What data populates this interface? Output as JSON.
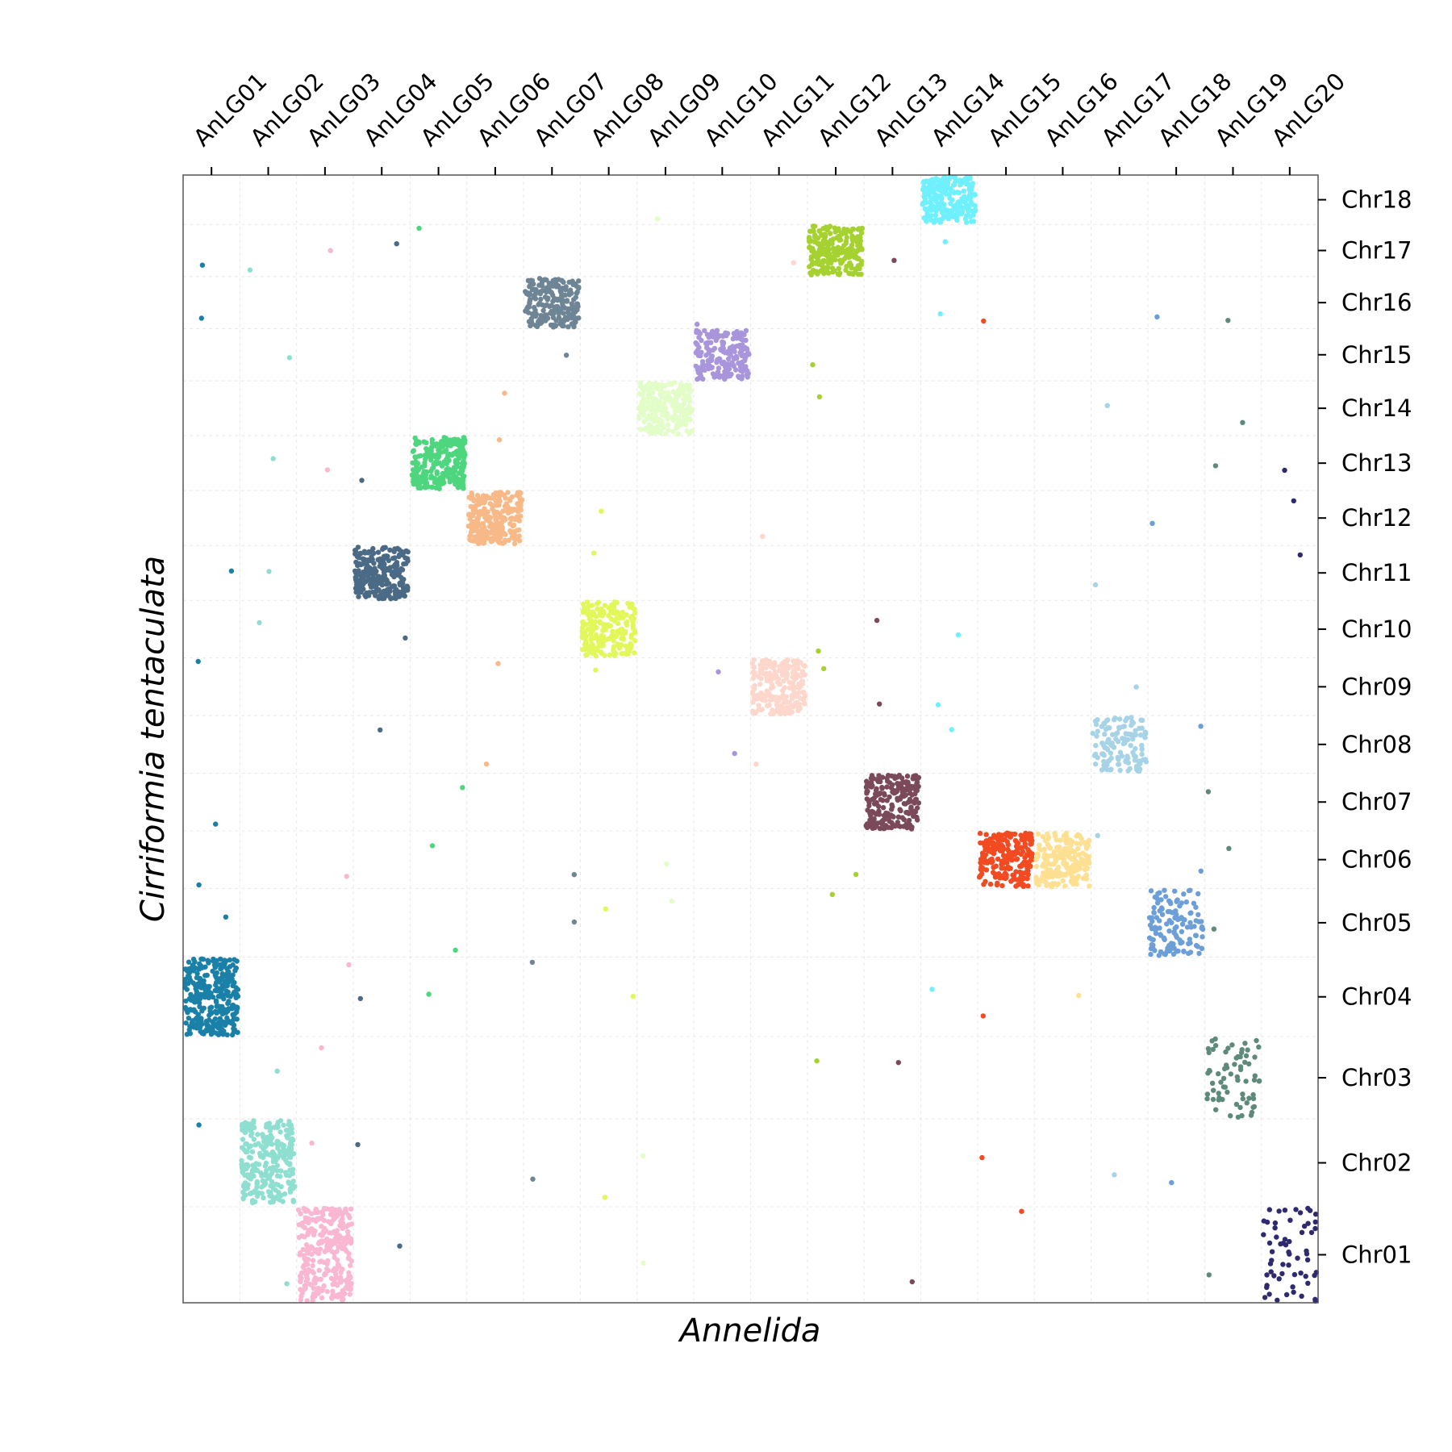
{
  "chart_data": {
    "type": "scatter",
    "xlabel": "Annelida",
    "ylabel": "Cirriformia tentaculata",
    "x_categories": [
      "AnLG01",
      "AnLG02",
      "AnLG03",
      "AnLG04",
      "AnLG05",
      "AnLG06",
      "AnLG07",
      "AnLG08",
      "AnLG09",
      "AnLG10",
      "AnLG11",
      "AnLG12",
      "AnLG13",
      "AnLG14",
      "AnLG15",
      "AnLG16",
      "AnLG17",
      "AnLG18",
      "AnLG19",
      "AnLG20"
    ],
    "y_categories": [
      "Chr01",
      "Chr02",
      "Chr03",
      "Chr04",
      "Chr05",
      "Chr06",
      "Chr07",
      "Chr08",
      "Chr09",
      "Chr10",
      "Chr11",
      "Chr12",
      "Chr13",
      "Chr14",
      "Chr15",
      "Chr16",
      "Chr17",
      "Chr18"
    ],
    "y_relative_sizes": [
      1.75,
      1.6,
      1.5,
      1.45,
      1.25,
      1.05,
      1.05,
      1.05,
      1.05,
      1.05,
      1.0,
      1.0,
      1.0,
      1.0,
      0.95,
      0.95,
      0.95,
      0.9
    ],
    "grid": true,
    "x_tick_position": "top",
    "y_tick_position": "right",
    "blocks": [
      {
        "x": "AnLG01",
        "y": "Chr04",
        "color": "#1a80a8",
        "n": 320
      },
      {
        "x": "AnLG02",
        "y": "Chr02",
        "color": "#8fdfd0",
        "n": 260
      },
      {
        "x": "AnLG03",
        "y": "Chr01",
        "color": "#f9b7d2",
        "n": 300
      },
      {
        "x": "AnLG04",
        "y": "Chr11",
        "color": "#4a6a86",
        "n": 240
      },
      {
        "x": "AnLG05",
        "y": "Chr13",
        "color": "#4ed67e",
        "n": 240
      },
      {
        "x": "AnLG06",
        "y": "Chr12",
        "color": "#f8b988",
        "n": 240
      },
      {
        "x": "AnLG07",
        "y": "Chr16",
        "color": "#6e8596",
        "n": 220
      },
      {
        "x": "AnLG08",
        "y": "Chr10",
        "color": "#e2f85a",
        "n": 220
      },
      {
        "x": "AnLG09",
        "y": "Chr14",
        "color": "#e3fdc9",
        "n": 220
      },
      {
        "x": "AnLG10",
        "y": "Chr15",
        "color": "#a895dc",
        "n": 200
      },
      {
        "x": "AnLG11",
        "y": "Chr09",
        "color": "#fdd7cc",
        "n": 220
      },
      {
        "x": "AnLG12",
        "y": "Chr17",
        "color": "#a5d230",
        "n": 240
      },
      {
        "x": "AnLG13",
        "y": "Chr07",
        "color": "#7a4a5a",
        "n": 220
      },
      {
        "x": "AnLG14",
        "y": "Chr18",
        "color": "#6ef1fd",
        "n": 220
      },
      {
        "x": "AnLG15",
        "y": "Chr06",
        "color": "#f34a22",
        "n": 220
      },
      {
        "x": "AnLG16",
        "y": "Chr06",
        "color": "#fde092",
        "n": 200
      },
      {
        "x": "AnLG17",
        "y": "Chr08",
        "color": "#a6d3e6",
        "n": 130
      },
      {
        "x": "AnLG18",
        "y": "Chr05",
        "color": "#6c9ed8",
        "n": 130
      },
      {
        "x": "AnLG19",
        "y": "Chr03",
        "color": "#5e8a7c",
        "n": 70
      },
      {
        "x": "AnLG20",
        "y": "Chr01",
        "color": "#2e2a6e",
        "n": 60
      }
    ],
    "scattered_points": [
      {
        "x": "AnLG01",
        "y": "Chr17",
        "color": "#1a80a8"
      },
      {
        "x": "AnLG01",
        "y": "Chr16",
        "color": "#1a80a8"
      },
      {
        "x": "AnLG01",
        "y": "Chr11",
        "color": "#1a80a8"
      },
      {
        "x": "AnLG01",
        "y": "Chr09",
        "color": "#1a80a8"
      },
      {
        "x": "AnLG01",
        "y": "Chr07",
        "color": "#1a80a8"
      },
      {
        "x": "AnLG01",
        "y": "Chr06",
        "color": "#1a80a8"
      },
      {
        "x": "AnLG01",
        "y": "Chr05",
        "color": "#1a80a8"
      },
      {
        "x": "AnLG01",
        "y": "Chr02",
        "color": "#1a80a8"
      },
      {
        "x": "AnLG02",
        "y": "Chr17",
        "color": "#8fdfd0"
      },
      {
        "x": "AnLG02",
        "y": "Chr15",
        "color": "#8fdfd0"
      },
      {
        "x": "AnLG02",
        "y": "Chr13",
        "color": "#8fdfd0"
      },
      {
        "x": "AnLG02",
        "y": "Chr11",
        "color": "#8fdfd0"
      },
      {
        "x": "AnLG02",
        "y": "Chr10",
        "color": "#8fdfd0"
      },
      {
        "x": "AnLG02",
        "y": "Chr03",
        "color": "#8fdfd0"
      },
      {
        "x": "AnLG02",
        "y": "Chr01",
        "color": "#8fdfd0"
      },
      {
        "x": "AnLG03",
        "y": "Chr17",
        "color": "#f9b7d2"
      },
      {
        "x": "AnLG03",
        "y": "Chr13",
        "color": "#f9b7d2"
      },
      {
        "x": "AnLG03",
        "y": "Chr06",
        "color": "#f9b7d2"
      },
      {
        "x": "AnLG03",
        "y": "Chr04",
        "color": "#f9b7d2"
      },
      {
        "x": "AnLG03",
        "y": "Chr03",
        "color": "#f9b7d2"
      },
      {
        "x": "AnLG03",
        "y": "Chr02",
        "color": "#f9b7d2"
      },
      {
        "x": "AnLG04",
        "y": "Chr17",
        "color": "#4a6a86"
      },
      {
        "x": "AnLG04",
        "y": "Chr13",
        "color": "#4a6a86"
      },
      {
        "x": "AnLG04",
        "y": "Chr10",
        "color": "#4a6a86"
      },
      {
        "x": "AnLG04",
        "y": "Chr08",
        "color": "#4a6a86"
      },
      {
        "x": "AnLG04",
        "y": "Chr04",
        "color": "#4a6a86"
      },
      {
        "x": "AnLG04",
        "y": "Chr02",
        "color": "#4a6a86"
      },
      {
        "x": "AnLG04",
        "y": "Chr01",
        "color": "#4a6a86"
      },
      {
        "x": "AnLG05",
        "y": "Chr17",
        "color": "#4ed67e"
      },
      {
        "x": "AnLG05",
        "y": "Chr07",
        "color": "#4ed67e"
      },
      {
        "x": "AnLG05",
        "y": "Chr06",
        "color": "#4ed67e"
      },
      {
        "x": "AnLG05",
        "y": "Chr05",
        "color": "#4ed67e"
      },
      {
        "x": "AnLG05",
        "y": "Chr04",
        "color": "#4ed67e"
      },
      {
        "x": "AnLG06",
        "y": "Chr14",
        "color": "#f8b988"
      },
      {
        "x": "AnLG06",
        "y": "Chr13",
        "color": "#f8b988"
      },
      {
        "x": "AnLG06",
        "y": "Chr09",
        "color": "#f8b988"
      },
      {
        "x": "AnLG06",
        "y": "Chr08",
        "color": "#f8b988"
      },
      {
        "x": "AnLG07",
        "y": "Chr15",
        "color": "#6e8596"
      },
      {
        "x": "AnLG07",
        "y": "Chr06",
        "color": "#6e8596"
      },
      {
        "x": "AnLG07",
        "y": "Chr05",
        "color": "#6e8596"
      },
      {
        "x": "AnLG07",
        "y": "Chr04",
        "color": "#6e8596"
      },
      {
        "x": "AnLG07",
        "y": "Chr02",
        "color": "#6e8596"
      },
      {
        "x": "AnLG08",
        "y": "Chr12",
        "color": "#e2f85a"
      },
      {
        "x": "AnLG08",
        "y": "Chr11",
        "color": "#e2f85a"
      },
      {
        "x": "AnLG08",
        "y": "Chr09",
        "color": "#e2f85a"
      },
      {
        "x": "AnLG08",
        "y": "Chr05",
        "color": "#e2f85a"
      },
      {
        "x": "AnLG08",
        "y": "Chr04",
        "color": "#e2f85a"
      },
      {
        "x": "AnLG08",
        "y": "Chr02",
        "color": "#e2f85a"
      },
      {
        "x": "AnLG09",
        "y": "Chr18",
        "color": "#e3fdc9"
      },
      {
        "x": "AnLG09",
        "y": "Chr06",
        "color": "#e3fdc9"
      },
      {
        "x": "AnLG09",
        "y": "Chr05",
        "color": "#e3fdc9"
      },
      {
        "x": "AnLG09",
        "y": "Chr02",
        "color": "#e3fdc9"
      },
      {
        "x": "AnLG09",
        "y": "Chr01",
        "color": "#e3fdc9"
      },
      {
        "x": "AnLG10",
        "y": "Chr16",
        "color": "#a895dc"
      },
      {
        "x": "AnLG10",
        "y": "Chr09",
        "color": "#a895dc"
      },
      {
        "x": "AnLG10",
        "y": "Chr08",
        "color": "#a895dc"
      },
      {
        "x": "AnLG11",
        "y": "Chr17",
        "color": "#fdd7cc"
      },
      {
        "x": "AnLG11",
        "y": "Chr12",
        "color": "#fdd7cc"
      },
      {
        "x": "AnLG11",
        "y": "Chr08",
        "color": "#fdd7cc"
      },
      {
        "x": "AnLG12",
        "y": "Chr15",
        "color": "#a5d230"
      },
      {
        "x": "AnLG12",
        "y": "Chr14",
        "color": "#a5d230"
      },
      {
        "x": "AnLG12",
        "y": "Chr10",
        "color": "#a5d230"
      },
      {
        "x": "AnLG12",
        "y": "Chr09",
        "color": "#a5d230"
      },
      {
        "x": "AnLG12",
        "y": "Chr06",
        "color": "#a5d230"
      },
      {
        "x": "AnLG12",
        "y": "Chr05",
        "color": "#a5d230"
      },
      {
        "x": "AnLG12",
        "y": "Chr03",
        "color": "#a5d230"
      },
      {
        "x": "AnLG13",
        "y": "Chr17",
        "color": "#7a4a5a"
      },
      {
        "x": "AnLG13",
        "y": "Chr10",
        "color": "#7a4a5a"
      },
      {
        "x": "AnLG13",
        "y": "Chr09",
        "color": "#7a4a5a"
      },
      {
        "x": "AnLG13",
        "y": "Chr03",
        "color": "#7a4a5a"
      },
      {
        "x": "AnLG13",
        "y": "Chr01",
        "color": "#7a4a5a"
      },
      {
        "x": "AnLG14",
        "y": "Chr17",
        "color": "#6ef1fd"
      },
      {
        "x": "AnLG14",
        "y": "Chr16",
        "color": "#6ef1fd"
      },
      {
        "x": "AnLG14",
        "y": "Chr10",
        "color": "#6ef1fd"
      },
      {
        "x": "AnLG14",
        "y": "Chr09",
        "color": "#6ef1fd"
      },
      {
        "x": "AnLG14",
        "y": "Chr08",
        "color": "#6ef1fd"
      },
      {
        "x": "AnLG14",
        "y": "Chr04",
        "color": "#6ef1fd"
      },
      {
        "x": "AnLG15",
        "y": "Chr16",
        "color": "#f34a22"
      },
      {
        "x": "AnLG15",
        "y": "Chr04",
        "color": "#f34a22"
      },
      {
        "x": "AnLG15",
        "y": "Chr02",
        "color": "#f34a22"
      },
      {
        "x": "AnLG15",
        "y": "Chr01",
        "color": "#f34a22"
      },
      {
        "x": "AnLG16",
        "y": "Chr04",
        "color": "#fde092"
      },
      {
        "x": "AnLG17",
        "y": "Chr14",
        "color": "#a6d3e6"
      },
      {
        "x": "AnLG17",
        "y": "Chr11",
        "color": "#a6d3e6"
      },
      {
        "x": "AnLG17",
        "y": "Chr09",
        "color": "#a6d3e6"
      },
      {
        "x": "AnLG17",
        "y": "Chr06",
        "color": "#a6d3e6"
      },
      {
        "x": "AnLG17",
        "y": "Chr02",
        "color": "#a6d3e6"
      },
      {
        "x": "AnLG18",
        "y": "Chr16",
        "color": "#6c9ed8"
      },
      {
        "x": "AnLG18",
        "y": "Chr12",
        "color": "#6c9ed8"
      },
      {
        "x": "AnLG18",
        "y": "Chr08",
        "color": "#6c9ed8"
      },
      {
        "x": "AnLG18",
        "y": "Chr06",
        "color": "#6c9ed8"
      },
      {
        "x": "AnLG18",
        "y": "Chr02",
        "color": "#6c9ed8"
      },
      {
        "x": "AnLG19",
        "y": "Chr16",
        "color": "#5e8a7c"
      },
      {
        "x": "AnLG19",
        "y": "Chr14",
        "color": "#5e8a7c"
      },
      {
        "x": "AnLG19",
        "y": "Chr13",
        "color": "#5e8a7c"
      },
      {
        "x": "AnLG19",
        "y": "Chr07",
        "color": "#5e8a7c"
      },
      {
        "x": "AnLG19",
        "y": "Chr06",
        "color": "#5e8a7c"
      },
      {
        "x": "AnLG19",
        "y": "Chr05",
        "color": "#5e8a7c"
      },
      {
        "x": "AnLG19",
        "y": "Chr01",
        "color": "#5e8a7c"
      },
      {
        "x": "AnLG20",
        "y": "Chr13",
        "color": "#2e2a6e"
      },
      {
        "x": "AnLG20",
        "y": "Chr12",
        "color": "#2e2a6e"
      },
      {
        "x": "AnLG20",
        "y": "Chr11",
        "color": "#2e2a6e"
      }
    ]
  }
}
